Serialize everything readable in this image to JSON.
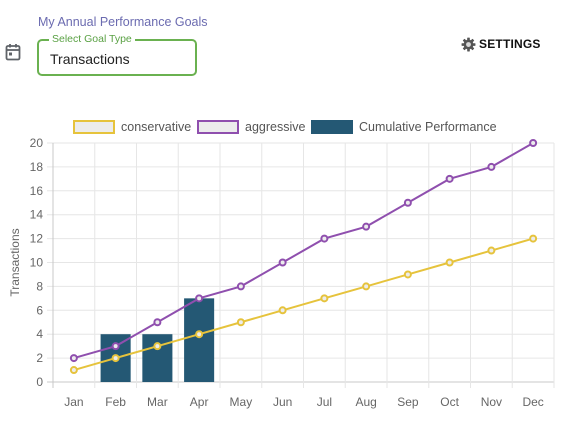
{
  "header": {
    "page_title": "My Annual Performance Goals",
    "goal_type_label": "Select Goal Type",
    "goal_type_value": "Transactions",
    "settings_label": "SETTINGS",
    "calendar_icon": "calendar-icon",
    "settings_icon": "gear-icon"
  },
  "chart_data": {
    "type": "line",
    "categories": [
      "Jan",
      "Feb",
      "Mar",
      "Apr",
      "May",
      "Jun",
      "Jul",
      "Aug",
      "Sep",
      "Oct",
      "Nov",
      "Dec"
    ],
    "ylabel": "Transactions",
    "ylim": [
      0,
      20
    ],
    "yticks": [
      0,
      2,
      4,
      6,
      8,
      10,
      12,
      14,
      16,
      18,
      20
    ],
    "grid": true,
    "legend_position": "top",
    "series": [
      {
        "name": "conservative",
        "type": "line",
        "color": "#e6c33c",
        "values": [
          1,
          2,
          3,
          4,
          5,
          6,
          7,
          8,
          9,
          10,
          11,
          12
        ]
      },
      {
        "name": "aggressive",
        "type": "line",
        "color": "#8f4fae",
        "values": [
          2,
          3,
          5,
          7,
          8,
          10,
          12,
          13,
          15,
          17,
          18,
          20
        ]
      },
      {
        "name": "Cumulative Performance",
        "type": "bar",
        "color": "#245874",
        "values": [
          null,
          4,
          4,
          7,
          null,
          null,
          null,
          null,
          null,
          null,
          null,
          null
        ]
      }
    ]
  }
}
